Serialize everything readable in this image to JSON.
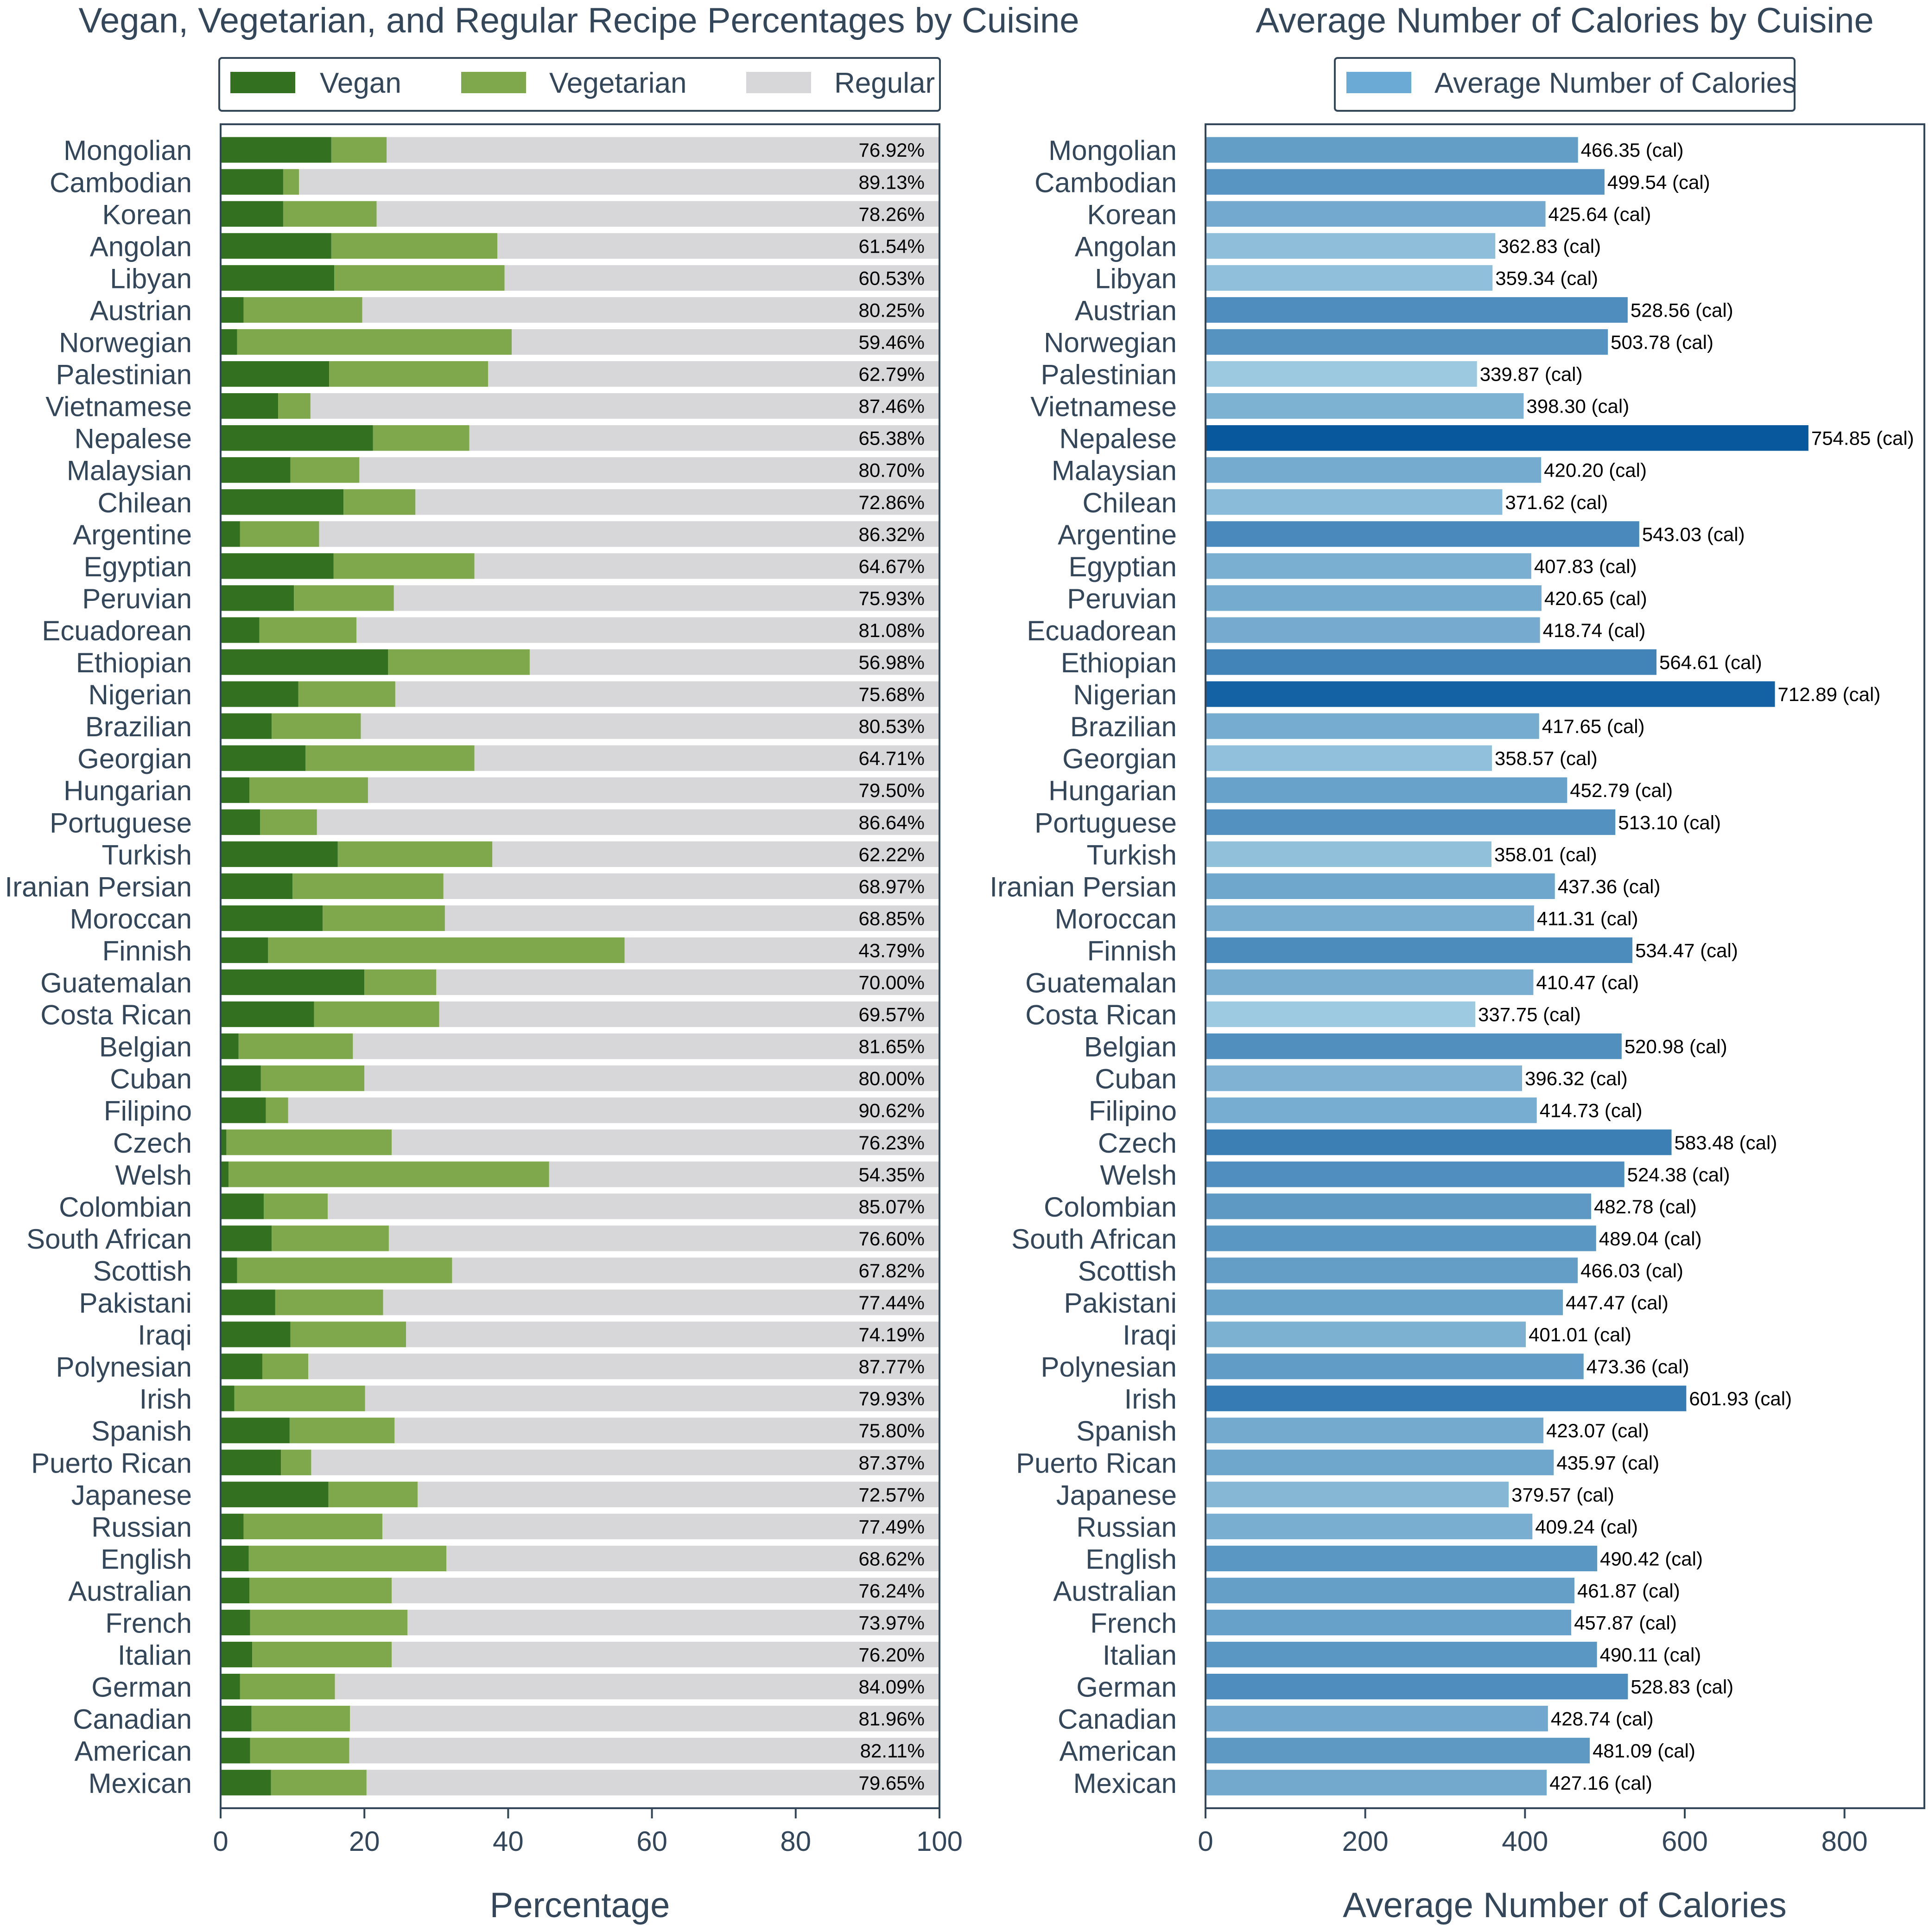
{
  "colors": {
    "vegan": "#33701f",
    "vegetarian": "#7ea84b",
    "regular": "#d7d7d9",
    "axis": "#34475a"
  },
  "chart_data": [
    {
      "type": "bar",
      "orientation": "horizontal",
      "stacked": true,
      "title": "Vegan, Vegetarian, and Regular Recipe Percentages by Cuisine",
      "xlabel": "Percentage",
      "ylabel": "",
      "xlim": [
        0,
        100
      ],
      "xticks": [
        "0",
        "20",
        "40",
        "60",
        "80",
        "100"
      ],
      "legend_position": "top-center",
      "categories": [
        "Mongolian",
        "Cambodian",
        "Korean",
        "Angolan",
        "Libyan",
        "Austrian",
        "Norwegian",
        "Palestinian",
        "Vietnamese",
        "Nepalese",
        "Malaysian",
        "Chilean",
        "Argentine",
        "Egyptian",
        "Peruvian",
        "Ecuadorean",
        "Ethiopian",
        "Nigerian",
        "Brazilian",
        "Georgian",
        "Hungarian",
        "Portuguese",
        "Turkish",
        "Iranian Persian",
        "Moroccan",
        "Finnish",
        "Guatemalan",
        "Costa Rican",
        "Belgian",
        "Cuban",
        "Filipino",
        "Czech",
        "Welsh",
        "Colombian",
        "South African",
        "Scottish",
        "Pakistani",
        "Iraqi",
        "Polynesian",
        "Irish",
        "Spanish",
        "Puerto Rican",
        "Japanese",
        "Russian",
        "English",
        "Australian",
        "French",
        "Italian",
        "German",
        "Canadian",
        "American",
        "Mexican"
      ],
      "series": [
        {
          "name": "Vegan",
          "values": [
            15.4,
            8.7,
            8.7,
            15.4,
            15.8,
            3.2,
            2.3,
            15.1,
            8.0,
            21.2,
            9.7,
            17.1,
            2.7,
            15.7,
            10.2,
            5.4,
            23.3,
            10.8,
            7.1,
            11.8,
            4.0,
            5.5,
            16.3,
            10.0,
            14.2,
            6.6,
            20.0,
            13.0,
            2.5,
            5.6,
            6.3,
            0.8,
            1.1,
            6.0,
            7.1,
            2.3,
            7.6,
            9.7,
            5.8,
            1.9,
            9.6,
            8.4,
            15.0,
            3.2,
            3.9,
            4.0,
            4.1,
            4.4,
            2.7,
            4.3,
            4.1,
            7.0
          ]
        },
        {
          "name": "Vegetarian",
          "values": [
            7.7,
            2.2,
            13.0,
            23.1,
            23.7,
            16.5,
            38.2,
            22.1,
            4.5,
            13.4,
            9.6,
            10.0,
            11.0,
            19.6,
            13.9,
            13.5,
            19.7,
            13.5,
            12.4,
            23.5,
            16.5,
            7.9,
            21.5,
            21.0,
            17.0,
            49.6,
            10.0,
            17.4,
            15.9,
            14.4,
            3.1,
            23.0,
            44.6,
            8.9,
            16.3,
            29.9,
            15.0,
            16.1,
            6.4,
            18.2,
            14.6,
            4.2,
            12.4,
            19.3,
            27.5,
            19.8,
            21.9,
            19.4,
            13.2,
            13.7,
            13.8,
            13.3
          ]
        },
        {
          "name": "Regular",
          "values": [
            76.92,
            89.13,
            78.26,
            61.54,
            60.53,
            80.25,
            59.46,
            62.79,
            87.46,
            65.38,
            80.7,
            72.86,
            86.32,
            64.67,
            75.93,
            81.08,
            56.98,
            75.68,
            80.53,
            64.71,
            79.5,
            86.64,
            62.22,
            68.97,
            68.85,
            43.79,
            70.0,
            69.57,
            81.65,
            80.0,
            90.62,
            76.23,
            54.35,
            85.07,
            76.6,
            67.82,
            77.44,
            74.19,
            87.77,
            79.93,
            75.8,
            87.37,
            72.57,
            77.49,
            68.62,
            76.24,
            73.97,
            76.2,
            84.09,
            81.96,
            82.11,
            79.65
          ]
        }
      ],
      "data_labels": [
        "76.92%",
        "89.13%",
        "78.26%",
        "61.54%",
        "60.53%",
        "80.25%",
        "59.46%",
        "62.79%",
        "87.46%",
        "65.38%",
        "80.70%",
        "72.86%",
        "86.32%",
        "64.67%",
        "75.93%",
        "81.08%",
        "56.98%",
        "75.68%",
        "80.53%",
        "64.71%",
        "79.50%",
        "86.64%",
        "62.22%",
        "68.97%",
        "68.85%",
        "43.79%",
        "70.00%",
        "69.57%",
        "81.65%",
        "80.00%",
        "90.62%",
        "76.23%",
        "54.35%",
        "85.07%",
        "76.60%",
        "67.82%",
        "77.44%",
        "74.19%",
        "87.77%",
        "79.93%",
        "75.80%",
        "87.37%",
        "72.57%",
        "77.49%",
        "68.62%",
        "76.24%",
        "73.97%",
        "76.20%",
        "84.09%",
        "81.96%",
        "82.11%",
        "79.65%"
      ]
    },
    {
      "type": "bar",
      "orientation": "horizontal",
      "title": "Average Number of Calories by Cuisine",
      "xlabel": "Average Number of Calories",
      "ylabel": "",
      "xlim": [
        0,
        900
      ],
      "xticks": [
        "0",
        "200",
        "400",
        "600",
        "800"
      ],
      "legend_position": "top-center",
      "color_scale": [
        "#9ecae1",
        "#08589e"
      ],
      "categories": [
        "Mongolian",
        "Cambodian",
        "Korean",
        "Angolan",
        "Libyan",
        "Austrian",
        "Norwegian",
        "Palestinian",
        "Vietnamese",
        "Nepalese",
        "Malaysian",
        "Chilean",
        "Argentine",
        "Egyptian",
        "Peruvian",
        "Ecuadorean",
        "Ethiopian",
        "Nigerian",
        "Brazilian",
        "Georgian",
        "Hungarian",
        "Portuguese",
        "Turkish",
        "Iranian Persian",
        "Moroccan",
        "Finnish",
        "Guatemalan",
        "Costa Rican",
        "Belgian",
        "Cuban",
        "Filipino",
        "Czech",
        "Welsh",
        "Colombian",
        "South African",
        "Scottish",
        "Pakistani",
        "Iraqi",
        "Polynesian",
        "Irish",
        "Spanish",
        "Puerto Rican",
        "Japanese",
        "Russian",
        "English",
        "Australian",
        "French",
        "Italian",
        "German",
        "Canadian",
        "American",
        "Mexican"
      ],
      "series": [
        {
          "name": "Average Number of Calories",
          "values": [
            466.35,
            499.54,
            425.64,
            362.83,
            359.34,
            528.56,
            503.78,
            339.87,
            398.3,
            754.85,
            420.2,
            371.62,
            543.03,
            407.83,
            420.65,
            418.74,
            564.61,
            712.89,
            417.65,
            358.57,
            452.79,
            513.1,
            358.01,
            437.36,
            411.31,
            534.47,
            410.47,
            337.75,
            520.98,
            396.32,
            414.73,
            583.48,
            524.38,
            482.78,
            489.04,
            466.03,
            447.47,
            401.01,
            473.36,
            601.93,
            423.07,
            435.97,
            379.57,
            409.24,
            490.42,
            461.87,
            457.87,
            490.11,
            528.83,
            428.74,
            481.09,
            427.16
          ]
        }
      ],
      "data_labels": [
        "466.35 (cal)",
        "499.54 (cal)",
        "425.64 (cal)",
        "362.83 (cal)",
        "359.34 (cal)",
        "528.56 (cal)",
        "503.78 (cal)",
        "339.87 (cal)",
        "398.30 (cal)",
        "754.85 (cal)",
        "420.20 (cal)",
        "371.62 (cal)",
        "543.03 (cal)",
        "407.83 (cal)",
        "420.65 (cal)",
        "418.74 (cal)",
        "564.61 (cal)",
        "712.89 (cal)",
        "417.65 (cal)",
        "358.57 (cal)",
        "452.79 (cal)",
        "513.10 (cal)",
        "358.01 (cal)",
        "437.36 (cal)",
        "411.31 (cal)",
        "534.47 (cal)",
        "410.47 (cal)",
        "337.75 (cal)",
        "520.98 (cal)",
        "396.32 (cal)",
        "414.73 (cal)",
        "583.48 (cal)",
        "524.38 (cal)",
        "482.78 (cal)",
        "489.04 (cal)",
        "466.03 (cal)",
        "447.47 (cal)",
        "401.01 (cal)",
        "473.36 (cal)",
        "601.93 (cal)",
        "423.07 (cal)",
        "435.97 (cal)",
        "379.57 (cal)",
        "409.24 (cal)",
        "490.42 (cal)",
        "461.87 (cal)",
        "457.87 (cal)",
        "490.11 (cal)",
        "528.83 (cal)",
        "428.74 (cal)",
        "481.09 (cal)",
        "427.16 (cal)"
      ]
    }
  ]
}
